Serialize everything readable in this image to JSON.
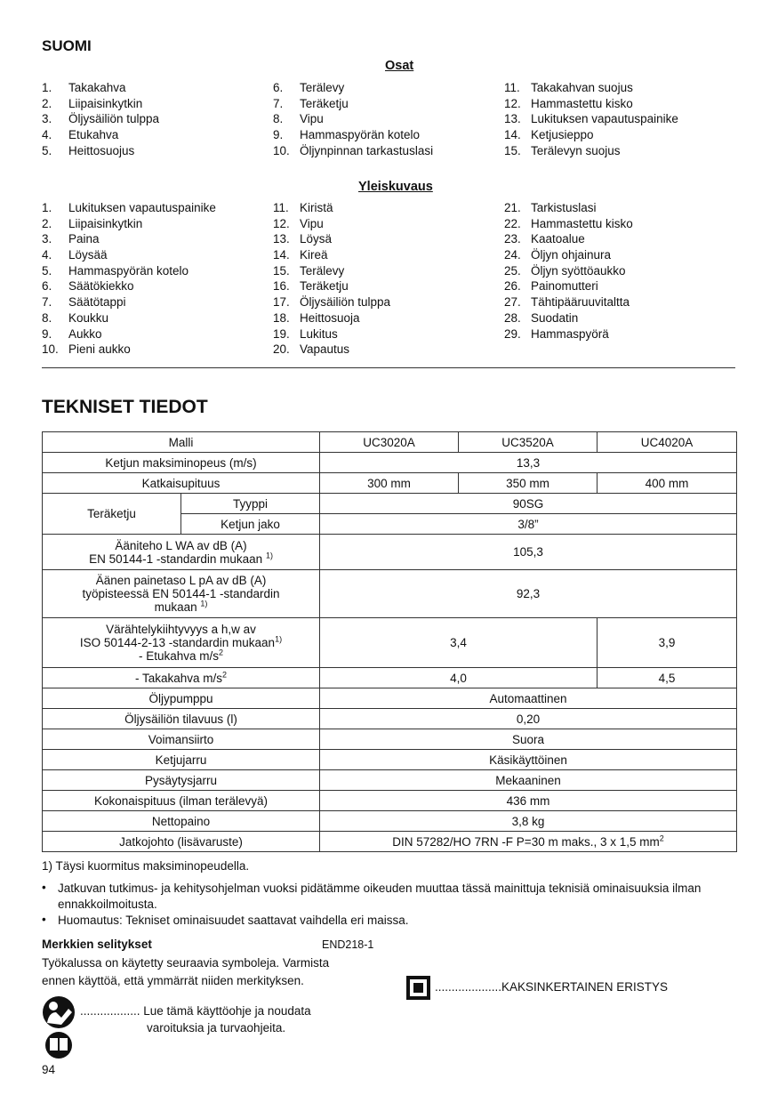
{
  "language": "SUOMI",
  "parts": {
    "title": "Osat",
    "columns": [
      [
        [
          "1.",
          "Takakahva"
        ],
        [
          "2.",
          "Liipaisinkytkin"
        ],
        [
          "3.",
          "Öljysäiliön tulppa"
        ],
        [
          "4.",
          "Etukahva"
        ],
        [
          "5.",
          "Heittosuojus"
        ]
      ],
      [
        [
          "6.",
          "Terälevy"
        ],
        [
          "7.",
          "Teräketju"
        ],
        [
          "8.",
          "Vipu"
        ],
        [
          "9.",
          "Hammaspyörän kotelo"
        ],
        [
          "10.",
          "Öljynpinnan tarkastuslasi"
        ]
      ],
      [
        [
          "11.",
          "Takakahvan suojus"
        ],
        [
          "12.",
          "Hammastettu kisko"
        ],
        [
          "13.",
          "Lukituksen vapautuspainike"
        ],
        [
          "14.",
          "Ketjusieppo"
        ],
        [
          "15.",
          "Terälevyn suojus"
        ]
      ]
    ]
  },
  "overview": {
    "title": "Yleiskuvaus",
    "columns": [
      [
        [
          "1.",
          "Lukituksen vapautuspainike"
        ],
        [
          "2.",
          "Liipaisinkytkin"
        ],
        [
          "3.",
          "Paina"
        ],
        [
          "4.",
          "Löysää"
        ],
        [
          "5.",
          "Hammaspyörän kotelo"
        ],
        [
          "6.",
          "Säätökiekko"
        ],
        [
          "7.",
          "Säätötappi"
        ],
        [
          "8.",
          "Koukku"
        ],
        [
          "9.",
          "Aukko"
        ],
        [
          "10.",
          "Pieni aukko"
        ]
      ],
      [
        [
          "11.",
          "Kiristä"
        ],
        [
          "12.",
          "Vipu"
        ],
        [
          "13.",
          "Löysä"
        ],
        [
          "14.",
          "Kireä"
        ],
        [
          "15.",
          "Terälevy"
        ],
        [
          "16.",
          "Teräketju"
        ],
        [
          "17.",
          "Öljysäiliön tulppa"
        ],
        [
          "18.",
          "Heittosuoja"
        ],
        [
          "19.",
          "Lukitus"
        ],
        [
          "20.",
          "Vapautus"
        ]
      ],
      [
        [
          "21.",
          "Tarkistuslasi"
        ],
        [
          "22.",
          "Hammastettu kisko"
        ],
        [
          "23.",
          "Kaatoalue"
        ],
        [
          "24.",
          "Öljyn ohjainura"
        ],
        [
          "25.",
          "Öljyn syöttöaukko"
        ],
        [
          "26.",
          "Painomutteri"
        ],
        [
          "27.",
          "Tähtipääruuvitaltta"
        ],
        [
          "28.",
          "Suodatin"
        ],
        [
          "29.",
          "Hammaspyörä"
        ]
      ]
    ]
  },
  "specs": {
    "title": "TEKNISET TIEDOT",
    "header": {
      "label": "Malli",
      "models": [
        "UC3020A",
        "UC3520A",
        "UC4020A"
      ]
    },
    "chain_speed": {
      "label": "Ketjun maksiminopeus (m/s)",
      "value": "13,3"
    },
    "cut_length": {
      "label": "Katkaisupituus",
      "values": [
        "300 mm",
        "350 mm",
        "400 mm"
      ]
    },
    "saw_chain": {
      "label": "Teräketju",
      "type_label": "Tyyppi",
      "type_value": "90SG",
      "pitch_label": "Ketjun jako",
      "pitch_value": "3/8”"
    },
    "sound_power": {
      "line1": "Ääniteho L WA av dB (A)",
      "line2": "EN 50144-1 -standardin mukaan ",
      "sup": "1)",
      "value": "105,3"
    },
    "sound_pressure": {
      "line1": "Äänen painetaso L pA av dB (A)",
      "line2": "työpisteessä EN 50144-1 -standardin",
      "line3": "mukaan ",
      "sup": "1)",
      "value": "92,3"
    },
    "vibration": {
      "line1": "Värähtelykiihtyvyys a h,w av",
      "line2": "ISO 50144-2-13 -standardin mukaan",
      "sup": "1)",
      "line3": "- Etukahva m/s",
      "sup2": "2",
      "values": [
        "3,4",
        "3,9"
      ]
    },
    "rear_handle": {
      "label": "- Takakahva m/s",
      "sup": "2",
      "values": [
        "4,0",
        "4,5"
      ]
    },
    "rows": [
      [
        "Öljypumppu",
        "Automaattinen"
      ],
      [
        "Öljysäiliön tilavuus (l)",
        "0,20"
      ],
      [
        "Voimansiirto",
        "Suora"
      ],
      [
        "Ketjujarru",
        "Käsikäyttöinen"
      ],
      [
        "Pysäytysjarru",
        "Mekaaninen"
      ],
      [
        "Kokonaispituus (ilman terälevyä)",
        "436 mm"
      ],
      [
        "Nettopaino",
        "3,8 kg"
      ]
    ],
    "cord": {
      "label": "Jatkojohto (lisävaruste)",
      "value": "DIN 57282/HO 7RN -F P=30 m maks., 3 x 1,5 mm",
      "sup": "2"
    },
    "footnote": "1) Täysi kuormitus maksiminopeudella.",
    "bullets": [
      "Jatkuvan tutkimus- ja kehitysohjelman vuoksi pidätämme oikeuden muuttaa tässä mainittuja teknisiä ominaisuuksia ilman ennakkoilmoitusta.",
      "Huomautus: Tekniset ominaisuudet saattavat vaihdella eri maissa."
    ]
  },
  "symbols": {
    "title": "Merkkien selitykset",
    "code": "END218-1",
    "intro": "Työkalussa on käytetty seuraavia symboleja. Varmista ennen käyttöä, että ymmärrät niiden merkityksen.",
    "read_manual": {
      "dots": "..................",
      "text1": "Lue tämä käyttöohje ja noudata",
      "text2": "varoituksia ja turvaohjeita.",
      "icon": "read-manual-icon"
    },
    "double_insulation": {
      "dots": "....................",
      "text": "KAKSINKERTAINEN ERISTYS",
      "icon": "double-insulation-icon"
    }
  },
  "page_number": "94"
}
